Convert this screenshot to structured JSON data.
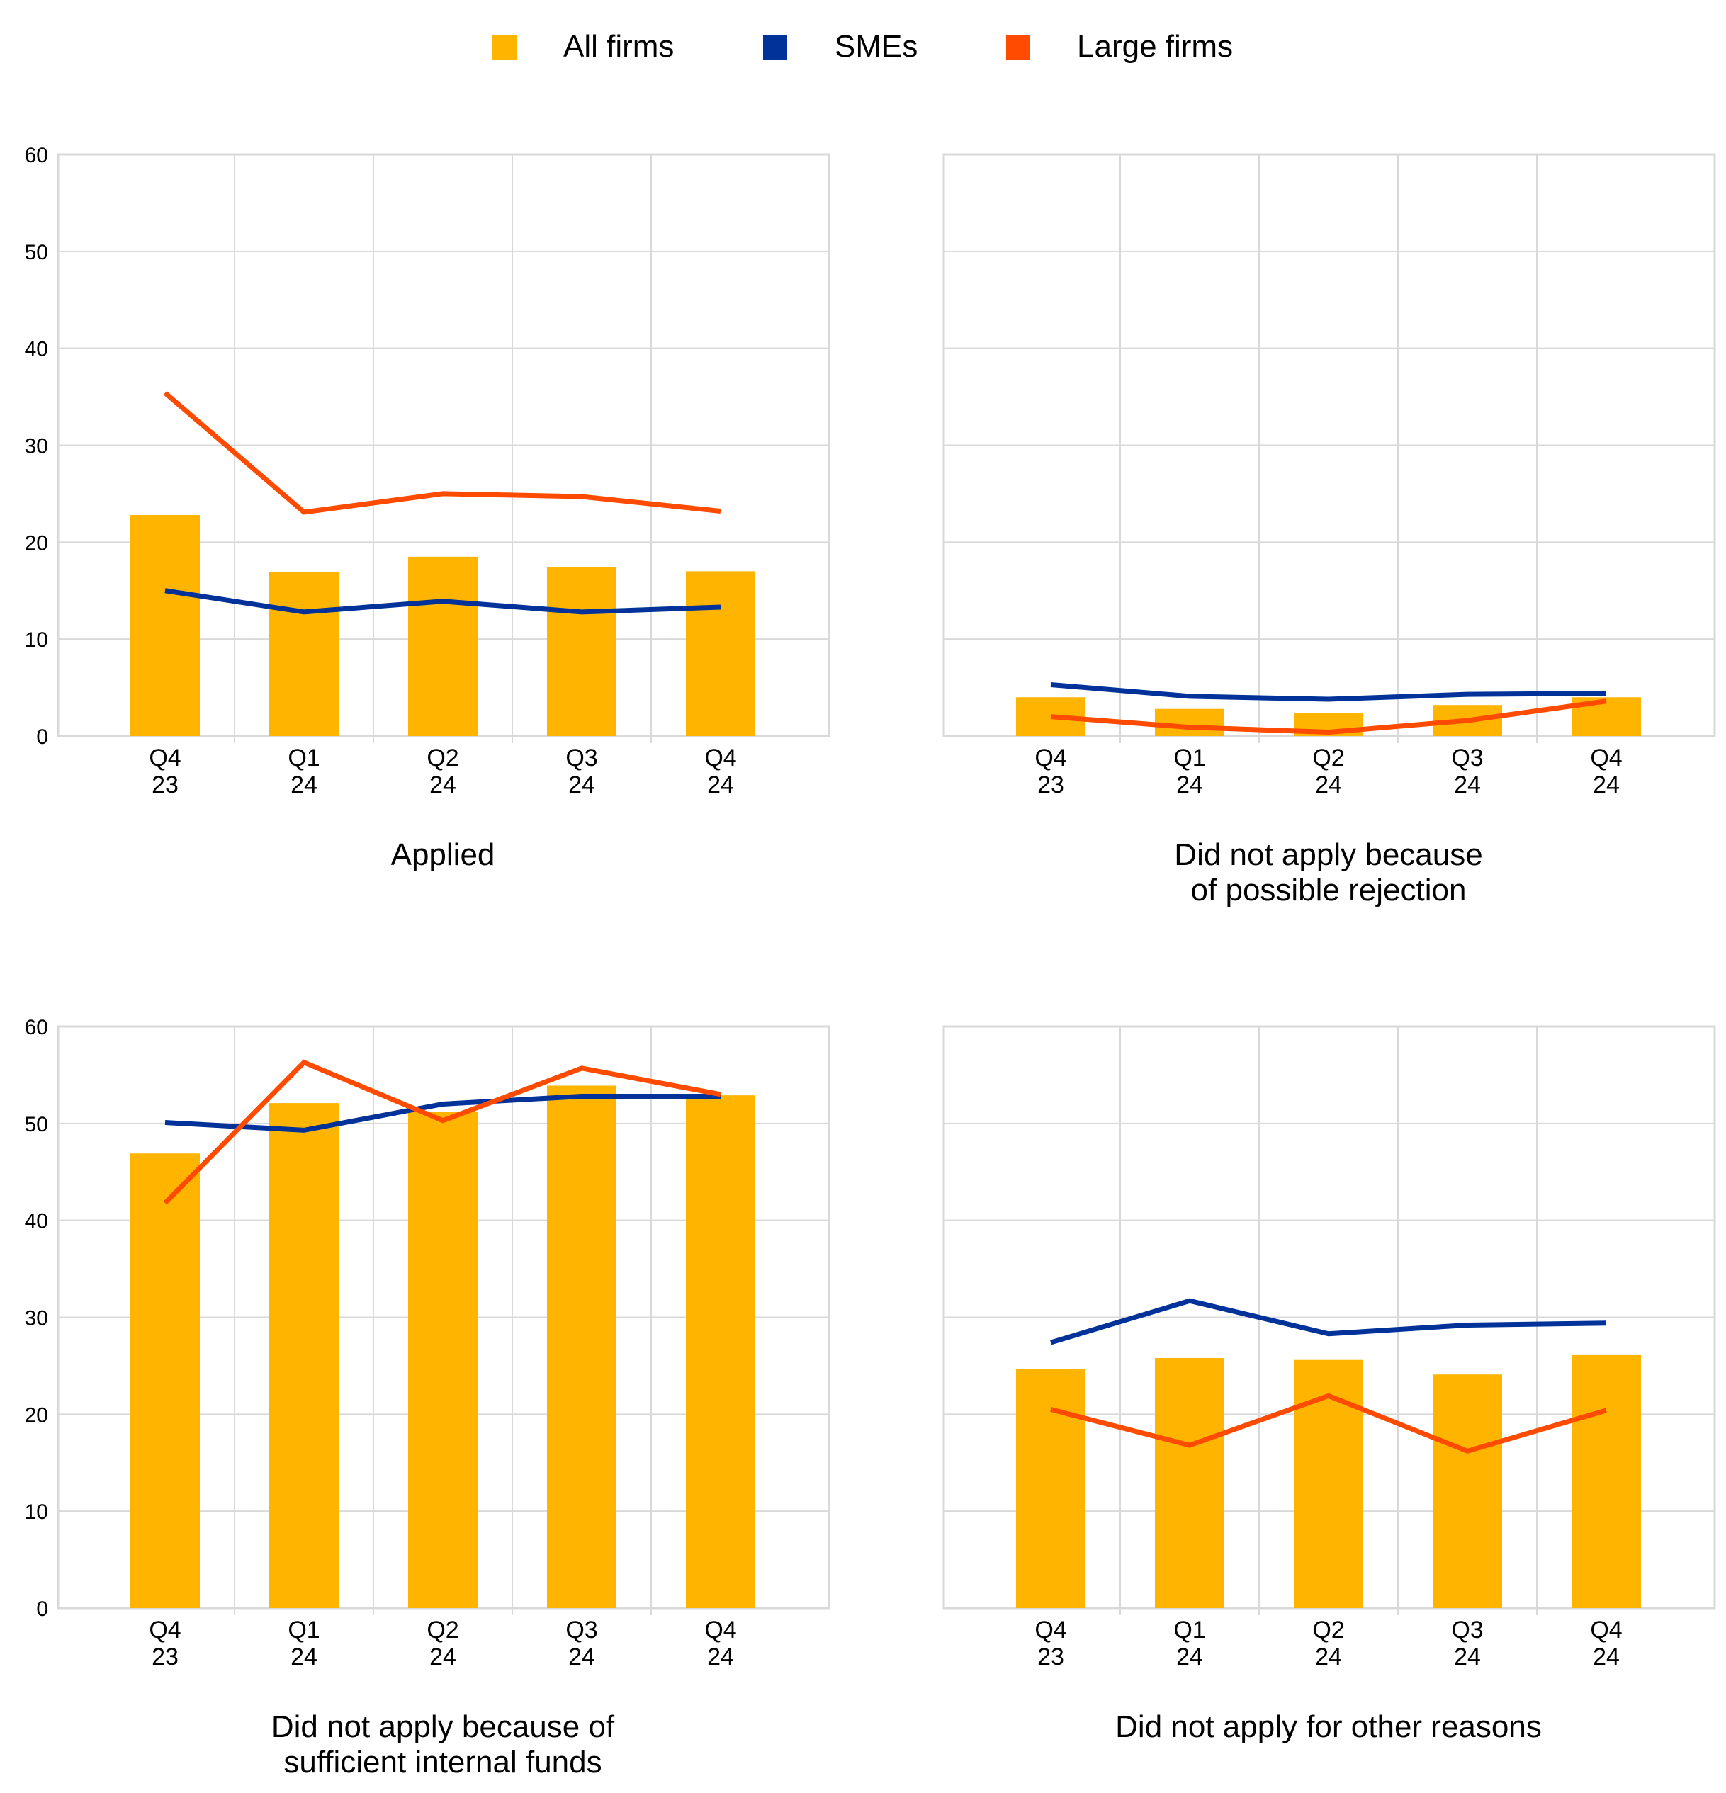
{
  "legend": [
    {
      "name": "All firms",
      "color": "#FFB400",
      "kind": "bar"
    },
    {
      "name": "SMEs",
      "color": "#003299",
      "kind": "line"
    },
    {
      "name": "Large firms",
      "color": "#FF4B00",
      "kind": "line"
    }
  ],
  "chart_data": [
    {
      "type": "bar",
      "title": "Applied",
      "categories": [
        [
          "Q4",
          "23"
        ],
        [
          "Q1",
          "24"
        ],
        [
          "Q2",
          "24"
        ],
        [
          "Q3",
          "24"
        ],
        [
          "Q4",
          "24"
        ]
      ],
      "ylim": [
        0,
        60
      ],
      "yticks": [
        0,
        10,
        20,
        30,
        40,
        50,
        60
      ],
      "grid": true,
      "series": [
        {
          "name": "All firms",
          "type": "bar",
          "values": [
            22.8,
            16.9,
            18.5,
            17.4,
            17.0
          ]
        },
        {
          "name": "SMEs",
          "type": "line",
          "values": [
            15.0,
            12.8,
            13.9,
            12.8,
            13.3
          ]
        },
        {
          "name": "Large firms",
          "type": "line",
          "values": [
            35.4,
            23.1,
            25.0,
            24.7,
            23.2
          ]
        }
      ]
    },
    {
      "type": "bar",
      "title": "Did not apply because\nof possible rejection",
      "categories": [
        [
          "Q4",
          "23"
        ],
        [
          "Q1",
          "24"
        ],
        [
          "Q2",
          "24"
        ],
        [
          "Q3",
          "24"
        ],
        [
          "Q4",
          "24"
        ]
      ],
      "ylim": [
        0,
        60
      ],
      "yticks": [],
      "grid": true,
      "series": [
        {
          "name": "All firms",
          "type": "bar",
          "values": [
            4.0,
            2.8,
            2.4,
            3.2,
            4.0
          ]
        },
        {
          "name": "SMEs",
          "type": "line",
          "values": [
            5.3,
            4.1,
            3.8,
            4.3,
            4.4
          ]
        },
        {
          "name": "Large firms",
          "type": "line",
          "values": [
            2.0,
            0.9,
            0.4,
            1.6,
            3.6
          ]
        }
      ]
    },
    {
      "type": "bar",
      "title": "Did not apply because of\nsufficient internal funds",
      "categories": [
        [
          "Q4",
          "23"
        ],
        [
          "Q1",
          "24"
        ],
        [
          "Q2",
          "24"
        ],
        [
          "Q3",
          "24"
        ],
        [
          "Q4",
          "24"
        ]
      ],
      "ylim": [
        0,
        60
      ],
      "yticks": [
        0,
        10,
        20,
        30,
        40,
        50,
        60
      ],
      "grid": true,
      "series": [
        {
          "name": "All firms",
          "type": "bar",
          "values": [
            46.9,
            52.1,
            51.2,
            53.9,
            52.9
          ]
        },
        {
          "name": "SMEs",
          "type": "line",
          "values": [
            50.1,
            49.3,
            52.0,
            52.8,
            52.8
          ]
        },
        {
          "name": "Large firms",
          "type": "line",
          "values": [
            41.8,
            56.3,
            50.3,
            55.7,
            53.0
          ]
        }
      ]
    },
    {
      "type": "bar",
      "title": "Did not apply for other reasons",
      "categories": [
        [
          "Q4",
          "23"
        ],
        [
          "Q1",
          "24"
        ],
        [
          "Q2",
          "24"
        ],
        [
          "Q3",
          "24"
        ],
        [
          "Q4",
          "24"
        ]
      ],
      "ylim": [
        0,
        60
      ],
      "yticks": [],
      "grid": true,
      "series": [
        {
          "name": "All firms",
          "type": "bar",
          "values": [
            24.7,
            25.8,
            25.6,
            24.1,
            26.1
          ]
        },
        {
          "name": "SMEs",
          "type": "line",
          "values": [
            27.4,
            31.7,
            28.3,
            29.2,
            29.4
          ]
        },
        {
          "name": "Large firms",
          "type": "line",
          "values": [
            20.5,
            16.8,
            21.9,
            16.2,
            20.4
          ]
        }
      ]
    }
  ]
}
